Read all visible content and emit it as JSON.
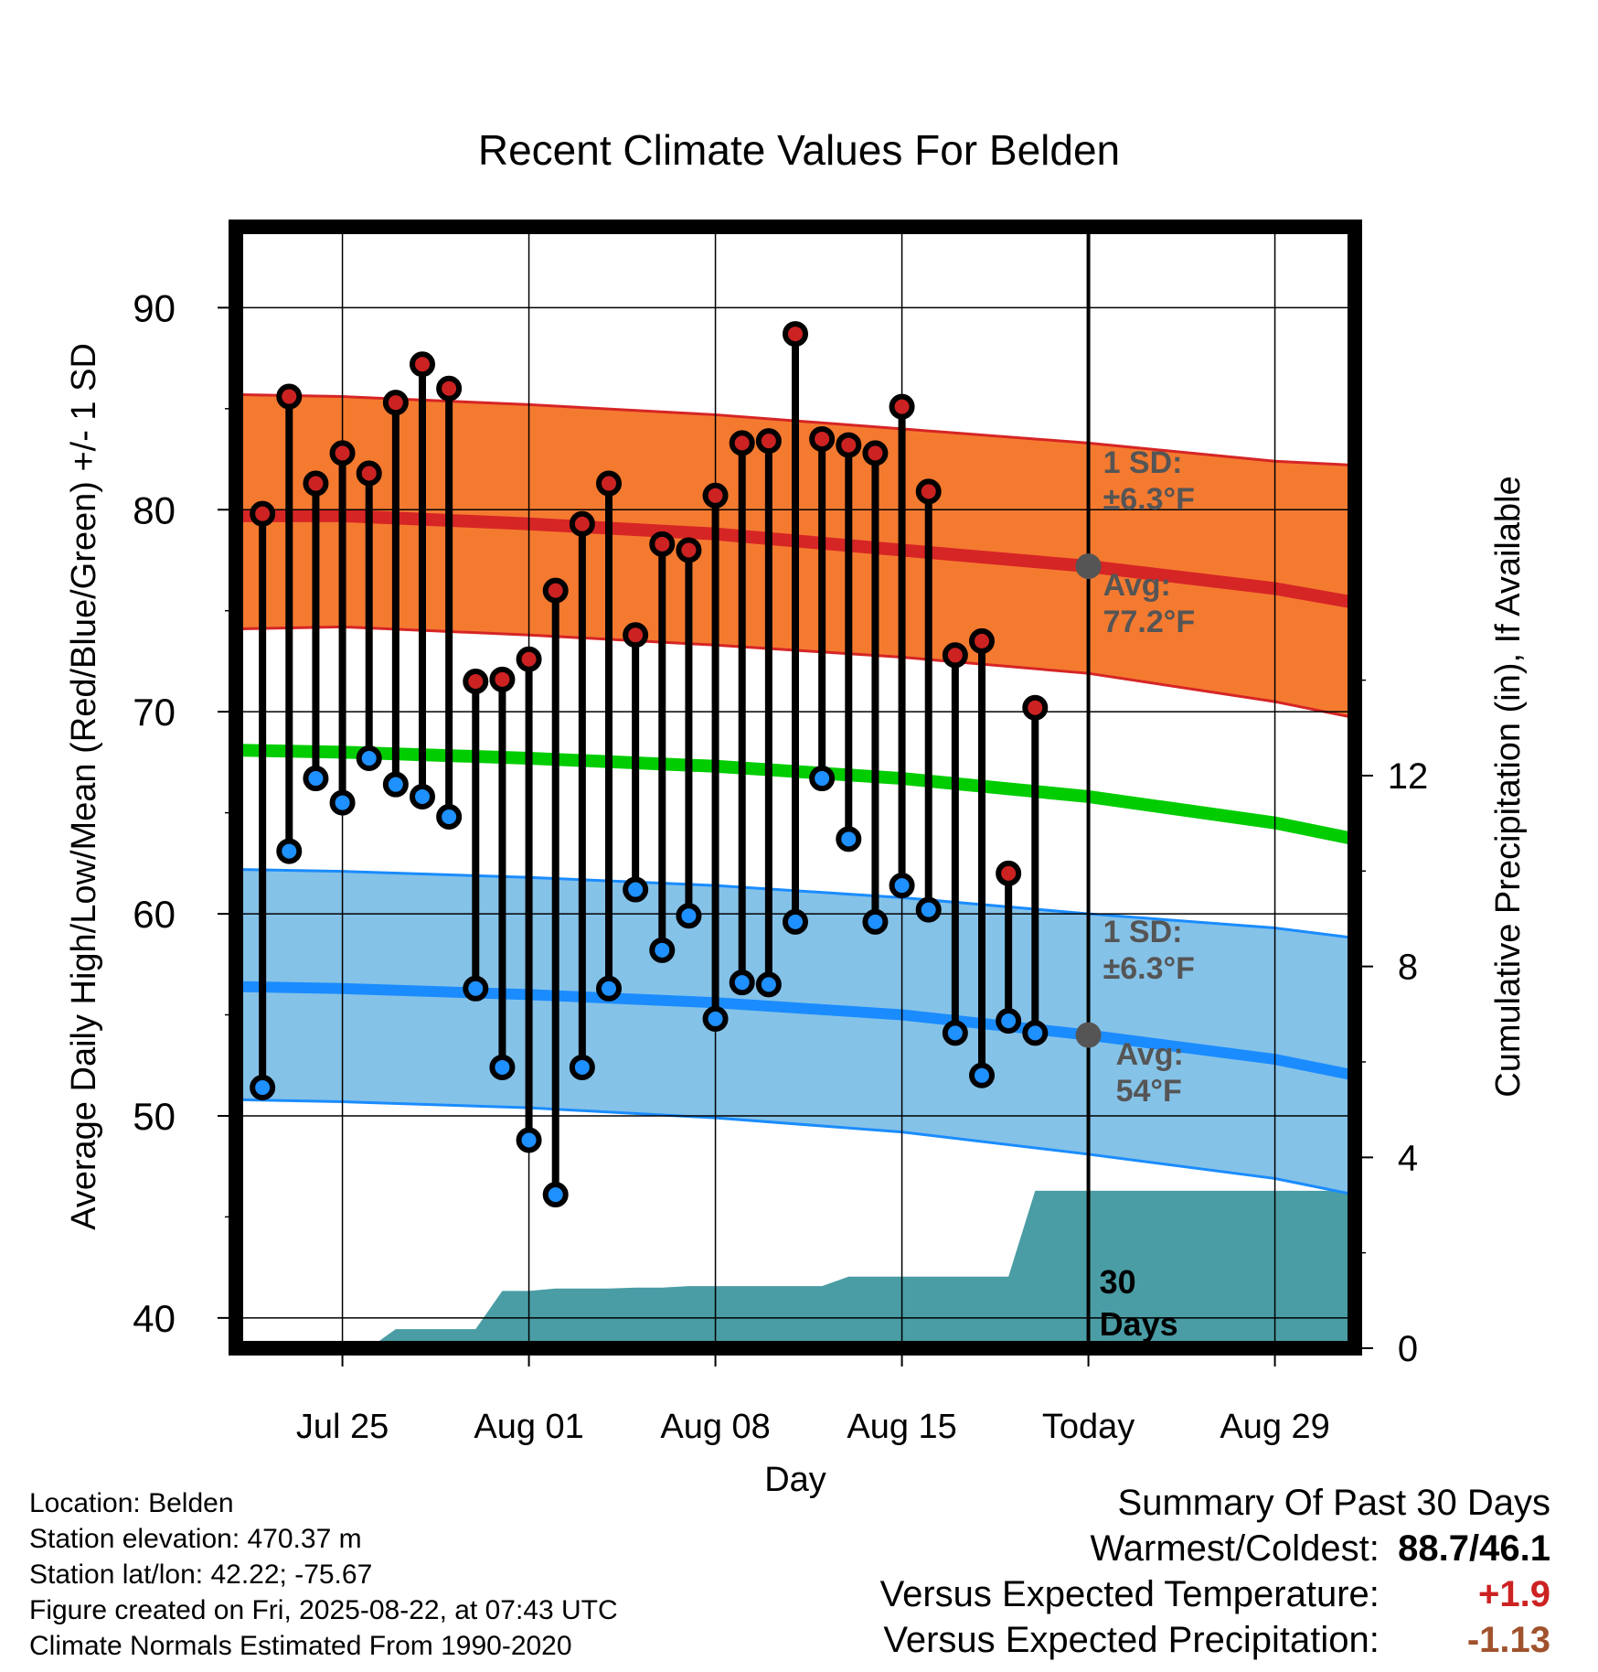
{
  "title": "Recent Climate Values For Belden",
  "footer": {
    "location": "Location: Belden",
    "elevation": "Station elevation: 470.37 m",
    "latlon": "Station lat/lon: 42.22; -75.67",
    "created": "Figure created on Fri, 2025-08-22, at 07:43 UTC",
    "normals": "Climate Normals Estimated From 1990-2020"
  },
  "summary": {
    "heading": "Summary Of Past 30 Days",
    "warm_cold_label": "Warmest/Coldest:",
    "warm_cold_value": "88.7/46.1",
    "temp_label": "Versus Expected Temperature:",
    "temp_value": "+1.9",
    "temp_color": "#cc2222",
    "precip_label": "Versus Expected Precipitation:",
    "precip_value": "-1.13",
    "precip_color": "#a0522d"
  },
  "chart_data": {
    "type": "line",
    "title": "Recent Climate Values For Belden",
    "xlabel": "Day",
    "ylabel": "Average Daily High/Low/Mean (Red/Blue/Green) +/- 1 SD",
    "y2label": "Cumulative Precipitation (in), If Available",
    "ylim": [
      38.5,
      94
    ],
    "y2lim": [
      0,
      23.5
    ],
    "xlim": [
      "2025-07-21",
      "2025-09-01"
    ],
    "yticks": [
      40,
      50,
      60,
      70,
      80,
      90
    ],
    "y2ticks": [
      0,
      4,
      8,
      12
    ],
    "xticks": [
      {
        "date": "2025-07-25",
        "label": "Jul 25"
      },
      {
        "date": "2025-08-01",
        "label": "Aug 01"
      },
      {
        "date": "2025-08-08",
        "label": "Aug 08"
      },
      {
        "date": "2025-08-15",
        "label": "Aug 15"
      },
      {
        "date": "2025-08-22",
        "label": "Today"
      },
      {
        "date": "2025-08-29",
        "label": "Aug 29"
      }
    ],
    "today": "2025-08-22",
    "window_label": "30\nDays",
    "grid": true,
    "daily": {
      "dates": [
        "2025-07-22",
        "2025-07-23",
        "2025-07-24",
        "2025-07-25",
        "2025-07-26",
        "2025-07-27",
        "2025-07-28",
        "2025-07-29",
        "2025-07-30",
        "2025-07-31",
        "2025-08-01",
        "2025-08-02",
        "2025-08-03",
        "2025-08-04",
        "2025-08-05",
        "2025-08-06",
        "2025-08-07",
        "2025-08-08",
        "2025-08-09",
        "2025-08-10",
        "2025-08-11",
        "2025-08-12",
        "2025-08-13",
        "2025-08-14",
        "2025-08-15",
        "2025-08-16",
        "2025-08-17",
        "2025-08-18",
        "2025-08-19",
        "2025-08-20",
        "2025-08-21"
      ],
      "highs": [
        79.8,
        85.6,
        81.3,
        82.8,
        81.8,
        85.3,
        87.2,
        86.0,
        71.5,
        71.6,
        72.6,
        76.0,
        79.3,
        81.3,
        73.8,
        78.3,
        78.0,
        80.7,
        83.3,
        83.4,
        88.7,
        83.5,
        83.2,
        82.8,
        85.1,
        80.9,
        72.8,
        73.5,
        62.0,
        70.2,
        null
      ],
      "lows": [
        51.4,
        63.1,
        66.7,
        65.5,
        67.7,
        66.4,
        65.8,
        64.8,
        56.3,
        52.4,
        48.8,
        46.1,
        52.4,
        56.3,
        61.2,
        58.2,
        59.9,
        54.8,
        56.6,
        56.5,
        59.6,
        66.7,
        63.7,
        59.6,
        61.4,
        60.2,
        54.1,
        52.0,
        54.7,
        54.1,
        null
      ]
    },
    "normals": {
      "dates": [
        "2025-07-21",
        "2025-07-25",
        "2025-08-01",
        "2025-08-08",
        "2025-08-15",
        "2025-08-22",
        "2025-08-29",
        "2025-09-01"
      ],
      "high_mean": [
        79.7,
        79.7,
        79.3,
        78.8,
        78.0,
        77.2,
        76.1,
        75.4
      ],
      "high_upper": [
        85.7,
        85.6,
        85.2,
        84.7,
        84.0,
        83.3,
        82.4,
        82.2
      ],
      "high_lower": [
        74.1,
        74.2,
        73.8,
        73.3,
        72.7,
        71.9,
        70.5,
        69.7
      ],
      "mean": [
        68.1,
        68.0,
        67.7,
        67.3,
        66.7,
        65.8,
        64.5,
        63.7
      ],
      "low_mean": [
        56.4,
        56.3,
        56.0,
        55.6,
        55.0,
        54.0,
        52.8,
        52.0
      ],
      "low_upper": [
        62.2,
        62.1,
        61.8,
        61.4,
        60.8,
        60.0,
        59.3,
        58.8
      ],
      "low_lower": [
        50.8,
        50.7,
        50.4,
        49.9,
        49.2,
        48.1,
        46.9,
        46.1
      ]
    },
    "annotations": {
      "high_sd": "1 SD:\n±6.3°F",
      "high_avg": "Avg:\n77.2°F",
      "low_sd": "1 SD:\n±6.3°F",
      "low_avg": "Avg:\n54°F"
    },
    "precip": {
      "dates": [
        "2025-07-22",
        "2025-07-24",
        "2025-07-25",
        "2025-07-26",
        "2025-07-27",
        "2025-07-28",
        "2025-07-29",
        "2025-07-30",
        "2025-07-31",
        "2025-08-01",
        "2025-08-02",
        "2025-08-03",
        "2025-08-04",
        "2025-08-05",
        "2025-08-06",
        "2025-08-07",
        "2025-08-08",
        "2025-08-09",
        "2025-08-10",
        "2025-08-11",
        "2025-08-12",
        "2025-08-13",
        "2025-08-14",
        "2025-08-15",
        "2025-08-16",
        "2025-08-17",
        "2025-08-18",
        "2025-08-19",
        "2025-08-20",
        "2025-08-21",
        "2025-08-22",
        "2025-09-01"
      ],
      "values": [
        0.0,
        0.0,
        0.0,
        0.0,
        0.4,
        0.4,
        0.4,
        0.4,
        1.2,
        1.2,
        1.25,
        1.25,
        1.25,
        1.27,
        1.27,
        1.3,
        1.3,
        1.3,
        1.3,
        1.3,
        1.3,
        1.5,
        1.5,
        1.5,
        1.5,
        1.5,
        1.5,
        1.5,
        3.3,
        3.3,
        3.3,
        3.3
      ]
    },
    "colors": {
      "high_band": "#f47a30",
      "high_line": "#d62525",
      "mean_line": "#00cc00",
      "low_band": "#85c2e8",
      "low_line": "#1a8cff",
      "precip": "#4a9da5",
      "high_marker": "#cc2222",
      "low_marker": "#1e90ff",
      "annotation": "#555555"
    }
  }
}
